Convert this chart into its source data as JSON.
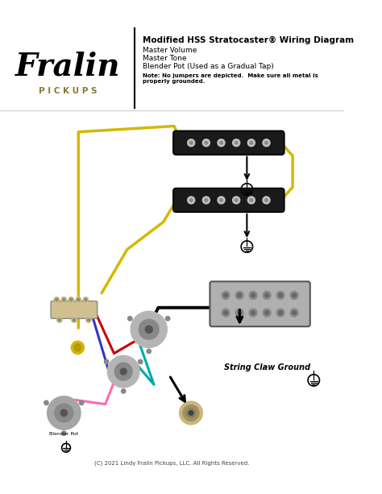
{
  "bg_color": "#ffffff",
  "title_line1": "Modified HSS Stratocaster® Wiring Diagram",
  "title_line2": "Master Volume",
  "title_line3": "Master Tone",
  "title_line4": "Blender Pot (Used as a Gradual Tap)",
  "note": "Note: No jumpers are depicted.  Make sure all metal is\nproperly grounded.",
  "copyright": "(C) 2021 Lindy Fralin Pickups, LLC. All Rights Reserved.",
  "string_claw_label": "String Claw Ground",
  "fralin_text": "Fralin",
  "pickups_text": "P I C K U P S",
  "separator_line_color": "#000000",
  "pickup_body_color": "#1a1a1a",
  "pickup_screw_color": "#c0c0c0",
  "humbucker_body_color": "#b0b0b0",
  "humbucker_screw_color": "#888888",
  "wire_yellow": "#d4b800",
  "wire_black": "#000000",
  "wire_red": "#cc0000",
  "wire_blue": "#3333cc",
  "wire_cyan": "#00aaaa",
  "wire_pink": "#ff69b4",
  "wire_white": "#ffffff",
  "ground_symbol_color": "#000000",
  "pot_body_color": "#a0a0a0",
  "blender_label": "Blender Pot",
  "switch_body_color": "#c8b87a",
  "arrow_color": "#000000"
}
